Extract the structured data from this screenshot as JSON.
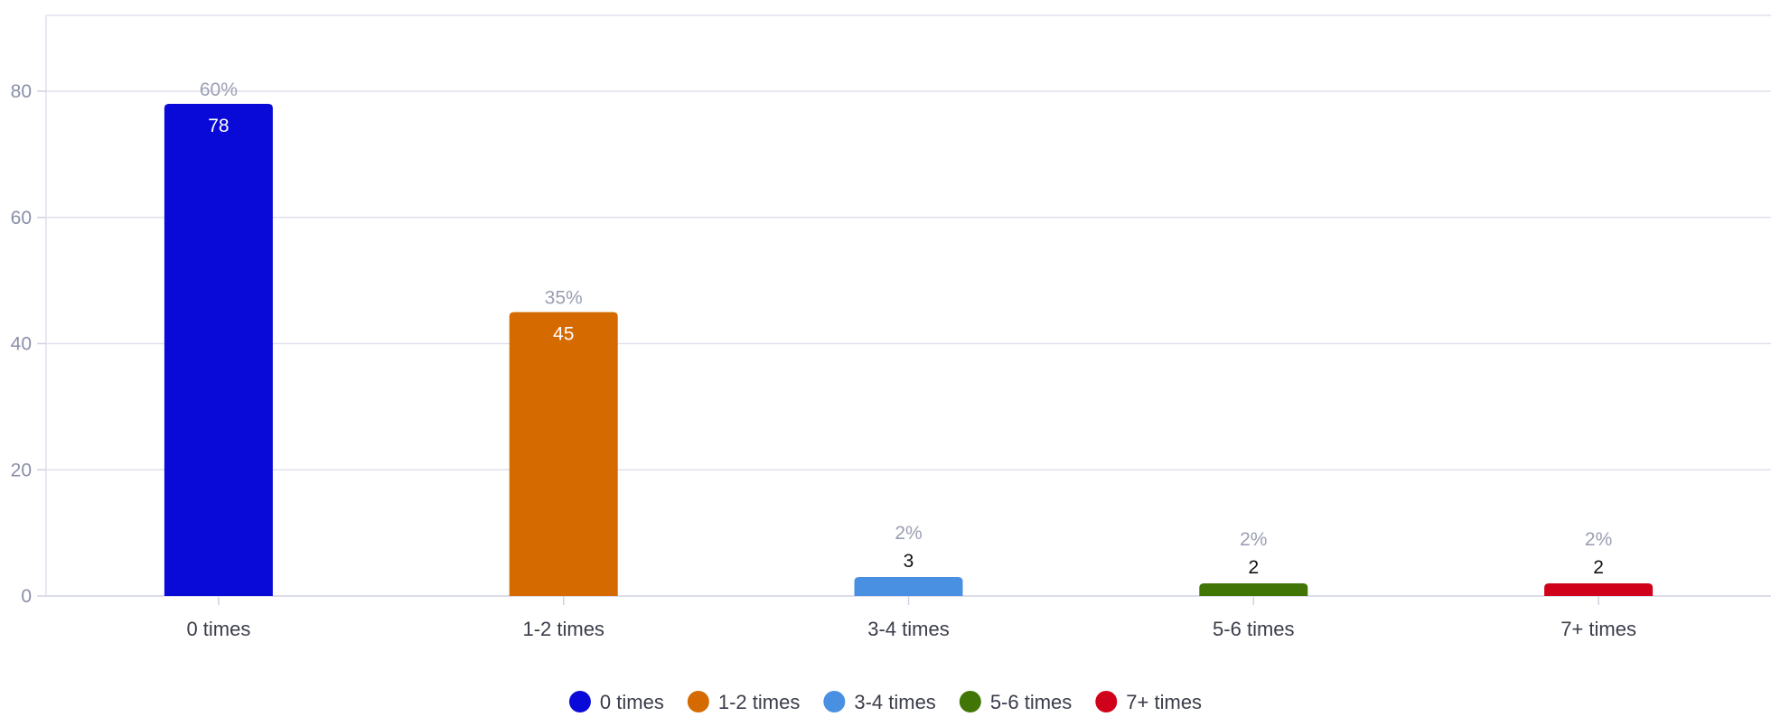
{
  "chart_data": {
    "type": "bar",
    "categories": [
      "0 times",
      "1-2 times",
      "3-4 times",
      "5-6 times",
      "7+ times"
    ],
    "values": [
      78,
      45,
      3,
      2,
      2
    ],
    "percent_labels": [
      "60%",
      "35%",
      "2%",
      "2%",
      "2%"
    ],
    "colors": [
      "#0a0ad8",
      "#d46a00",
      "#4a90e2",
      "#417505",
      "#d0021b"
    ],
    "value_label_colors": [
      "#ffffff",
      "#ffffff",
      "#111111",
      "#111111",
      "#111111"
    ],
    "yticks": [
      0,
      20,
      40,
      60,
      80
    ],
    "ylim": [
      0,
      92
    ],
    "grid": true,
    "legend": "bottom",
    "title": "",
    "xlabel": "",
    "ylabel": ""
  }
}
